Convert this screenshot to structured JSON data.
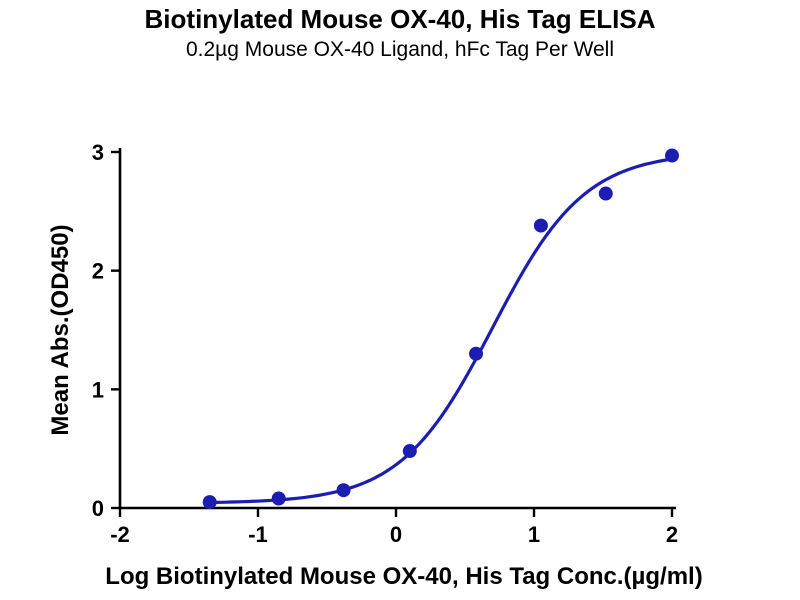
{
  "title": "Biotinylated Mouse OX-40, His Tag ELISA",
  "subtitle": "0.2µg Mouse OX-40 Ligand, hFc Tag Per Well",
  "chart_data": {
    "type": "scatter",
    "x": [
      -1.35,
      -0.85,
      -0.38,
      0.1,
      0.58,
      1.05,
      1.52,
      2.0
    ],
    "y": [
      0.05,
      0.08,
      0.15,
      0.48,
      1.3,
      2.38,
      2.65,
      2.97
    ],
    "fit": {
      "model": "4PL-sigmoid",
      "bottom": 0.04,
      "top": 3.0,
      "logEC50": 0.7,
      "hillslope": 1.3
    },
    "title": "Biotinylated Mouse OX-40, His Tag ELISA",
    "subtitle": "0.2µg Mouse OX-40 Ligand, hFc Tag Per Well",
    "xlabel": "Log Biotinylated Mouse OX-40, His Tag Conc.(µg/ml)",
    "ylabel": "Mean Abs.(OD450)",
    "xlim": [
      -2,
      2
    ],
    "ylim": [
      0,
      3
    ],
    "xticks": [
      -2,
      -1,
      0,
      1,
      2
    ],
    "yticks": [
      0,
      1,
      2,
      3
    ],
    "grid": false,
    "legend": false,
    "point_color": "#1c1eb2",
    "line_color": "#1c1eb2",
    "axis_color": "#000000"
  }
}
